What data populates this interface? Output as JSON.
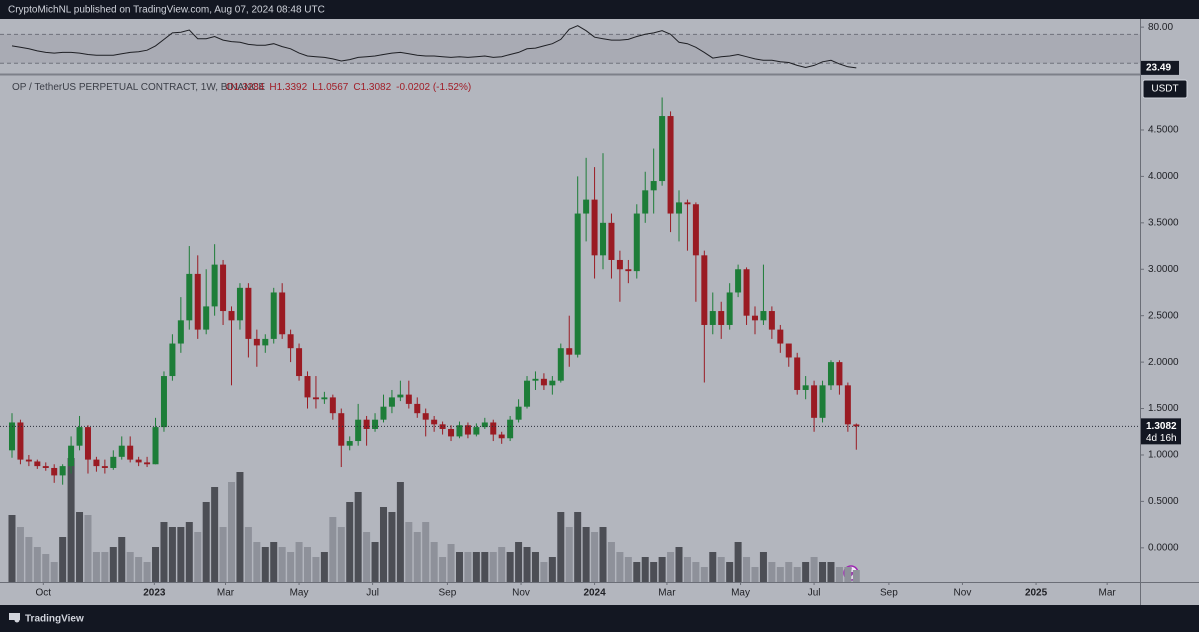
{
  "header": {
    "publisher_line": "CryptoMichNL published on TradingView.com, Aug 07, 2024 08:48 UTC"
  },
  "footer": {
    "brand": "TradingView"
  },
  "chart_data": {
    "type": "candlestick",
    "symbol_line": "OP / TetherUS PERPETUAL CONTRACT, 1W, BINANCE",
    "ohlc_legend": [
      "O1.3284",
      "H1.3392",
      "L1.0567",
      "C1.3082",
      "-0.0202 (-1.52%)"
    ],
    "currency": "USDT",
    "countdown": "4d 16h",
    "up_color": "#1d7d38",
    "down_color": "#9a1b23",
    "xlim": [
      -1.42,
      133.6
    ],
    "xticks": [
      {
        "value": 3.71,
        "label": "Oct"
      },
      {
        "value": 16.86,
        "label": "2023"
      },
      {
        "value": 25.29,
        "label": "Mar"
      },
      {
        "value": 34,
        "label": "May"
      },
      {
        "value": 42.71,
        "label": "Jul"
      },
      {
        "value": 51.57,
        "label": "Sep"
      },
      {
        "value": 60.29,
        "label": "Nov"
      },
      {
        "value": 69,
        "label": "2024"
      },
      {
        "value": 77.57,
        "label": "Mar"
      },
      {
        "value": 86.29,
        "label": "May"
      },
      {
        "value": 95,
        "label": "Jul"
      },
      {
        "value": 103.86,
        "label": "Sep"
      },
      {
        "value": 112.57,
        "label": "Nov"
      },
      {
        "value": 121.29,
        "label": "2025"
      },
      {
        "value": 129.71,
        "label": "Mar"
      }
    ],
    "ylim": [
      -0.368,
      5.092
    ],
    "yticks": [
      {
        "value": 0,
        "label": "0.0000"
      },
      {
        "value": 0.5,
        "label": "0.5000"
      },
      {
        "value": 1,
        "label": "1.0000"
      },
      {
        "value": 1.5,
        "label": "1.5000"
      },
      {
        "value": 2,
        "label": "2.0000"
      },
      {
        "value": 2.5,
        "label": "2.5000"
      },
      {
        "value": 3,
        "label": "3.0000"
      },
      {
        "value": 3.5,
        "label": "3.5000"
      },
      {
        "value": 4,
        "label": "4.0000"
      },
      {
        "value": 4.5,
        "label": "4.5000"
      }
    ],
    "open": [
      1.05,
      1.35,
      0.95,
      0.93,
      0.88,
      0.86,
      0.78,
      0.88,
      1.1,
      1.3,
      0.95,
      0.88,
      0.86,
      0.98,
      1.1,
      0.95,
      0.92,
      0.9,
      1.3,
      1.85,
      2.2,
      2.45,
      2.95,
      2.35,
      2.6,
      3.05,
      2.55,
      2.45,
      2.8,
      2.25,
      2.18,
      2.25,
      2.75,
      2.3,
      2.15,
      1.85,
      1.62,
      1.6,
      1.62,
      1.45,
      1.1,
      1.15,
      1.38,
      1.28,
      1.38,
      1.52,
      1.62,
      1.65,
      1.55,
      1.45,
      1.38,
      1.33,
      1.28,
      1.2,
      1.32,
      1.22,
      1.3,
      1.35,
      1.22,
      1.18,
      1.38,
      1.52,
      1.8,
      1.82,
      1.75,
      1.8,
      2.15,
      2.08,
      3.6,
      3.75,
      3.15,
      3.5,
      3.1,
      3.0,
      2.98,
      3.6,
      3.85,
      3.95,
      4.65,
      3.6,
      3.72,
      3.7,
      3.15,
      2.4,
      2.55,
      2.4,
      2.75,
      3.0,
      2.5,
      2.45,
      2.55,
      2.35,
      2.2,
      2.05,
      1.7,
      1.75,
      1.4,
      1.75,
      2.0,
      1.75,
      1.3284
    ],
    "high": [
      1.45,
      1.38,
      1.0,
      0.95,
      0.92,
      0.9,
      0.9,
      1.2,
      1.42,
      1.32,
      0.98,
      0.95,
      1.05,
      1.2,
      1.2,
      0.98,
      0.98,
      1.4,
      1.9,
      2.3,
      2.7,
      3.25,
      3.15,
      3.0,
      3.27,
      3.1,
      2.6,
      2.85,
      2.85,
      2.35,
      2.3,
      2.8,
      2.85,
      2.35,
      2.2,
      1.9,
      1.85,
      1.68,
      1.65,
      1.5,
      1.2,
      1.55,
      1.42,
      1.45,
      1.65,
      1.7,
      1.8,
      1.8,
      1.62,
      1.5,
      1.42,
      1.36,
      1.32,
      1.36,
      1.35,
      1.34,
      1.4,
      1.38,
      1.25,
      1.42,
      1.6,
      1.85,
      1.9,
      1.88,
      1.85,
      2.2,
      2.5,
      4.0,
      4.2,
      4.1,
      4.25,
      3.6,
      3.2,
      3.1,
      3.7,
      4.05,
      4.3,
      4.85,
      4.7,
      3.85,
      3.75,
      3.72,
      3.2,
      2.75,
      2.65,
      2.85,
      3.05,
      3.02,
      2.6,
      3.05,
      2.6,
      2.4,
      2.2,
      2.1,
      1.85,
      1.8,
      1.8,
      2.02,
      2.02,
      1.78,
      1.3392
    ],
    "low": [
      0.97,
      0.9,
      0.88,
      0.85,
      0.83,
      0.7,
      0.68,
      0.8,
      1.05,
      0.8,
      0.82,
      0.8,
      0.84,
      0.95,
      0.92,
      0.88,
      0.87,
      0.9,
      1.25,
      1.8,
      2.1,
      2.35,
      2.25,
      2.3,
      2.5,
      2.4,
      1.75,
      2.35,
      2.05,
      1.95,
      2.1,
      2.2,
      2.25,
      2.0,
      1.8,
      1.5,
      1.5,
      1.55,
      1.38,
      0.87,
      1.05,
      1.1,
      1.1,
      1.25,
      1.35,
      1.45,
      1.58,
      1.5,
      1.4,
      1.2,
      1.25,
      1.22,
      1.15,
      1.18,
      1.18,
      1.2,
      1.28,
      1.15,
      1.12,
      1.15,
      1.35,
      1.5,
      1.7,
      1.7,
      1.65,
      1.78,
      1.95,
      2.05,
      3.3,
      2.9,
      3.0,
      2.9,
      2.65,
      2.85,
      2.9,
      3.5,
      3.6,
      3.9,
      3.4,
      3.3,
      3.2,
      2.65,
      1.78,
      2.3,
      2.25,
      2.35,
      2.7,
      2.4,
      2.3,
      2.4,
      2.25,
      2.1,
      1.95,
      1.65,
      1.6,
      1.25,
      1.35,
      1.7,
      1.65,
      1.25,
      1.0567
    ],
    "close": [
      1.35,
      0.95,
      0.93,
      0.88,
      0.86,
      0.78,
      0.88,
      1.1,
      1.3,
      0.95,
      0.88,
      0.86,
      0.98,
      1.1,
      0.95,
      0.92,
      0.9,
      1.3,
      1.85,
      2.2,
      2.45,
      2.95,
      2.35,
      2.6,
      3.05,
      2.55,
      2.45,
      2.8,
      2.25,
      2.18,
      2.25,
      2.75,
      2.3,
      2.15,
      1.85,
      1.62,
      1.6,
      1.62,
      1.45,
      1.1,
      1.15,
      1.38,
      1.28,
      1.38,
      1.52,
      1.62,
      1.65,
      1.55,
      1.45,
      1.38,
      1.33,
      1.28,
      1.2,
      1.32,
      1.22,
      1.3,
      1.35,
      1.22,
      1.18,
      1.38,
      1.52,
      1.8,
      1.82,
      1.75,
      1.8,
      2.15,
      2.08,
      3.6,
      3.75,
      3.15,
      3.5,
      3.1,
      3.0,
      2.98,
      3.6,
      3.85,
      3.95,
      4.65,
      3.6,
      3.72,
      3.7,
      3.15,
      2.4,
      2.55,
      2.4,
      2.75,
      3.0,
      2.5,
      2.45,
      2.55,
      2.35,
      2.2,
      2.05,
      1.7,
      1.75,
      1.4,
      1.75,
      2.0,
      1.75,
      1.33,
      1.3082
    ],
    "volume": {
      "up_color": "#4c4e55",
      "down_color": "#8e919a",
      "values": [
        67,
        55,
        45,
        35,
        28,
        20,
        45,
        124,
        70,
        67,
        30,
        30,
        35,
        45,
        30,
        25,
        20,
        35,
        60,
        55,
        55,
        60,
        50,
        80,
        95,
        55,
        100,
        110,
        55,
        40,
        35,
        40,
        35,
        30,
        40,
        35,
        25,
        30,
        65,
        55,
        80,
        90,
        50,
        40,
        75,
        70,
        100,
        60,
        50,
        60,
        40,
        25,
        38,
        30,
        30,
        30,
        30,
        30,
        35,
        30,
        40,
        35,
        30,
        20,
        25,
        70,
        55,
        70,
        55,
        50,
        55,
        40,
        30,
        25,
        20,
        25,
        20,
        25,
        30,
        35,
        25,
        20,
        15,
        30,
        25,
        20,
        40,
        25,
        15,
        30,
        20,
        15,
        20,
        15,
        20,
        25,
        20,
        20,
        15,
        15,
        12
      ]
    },
    "rsi": {
      "color": "#1e1f24",
      "ylim": [
        16.4,
        89.9
      ],
      "band": [
        30,
        70
      ],
      "yticks": [
        {
          "value": 80,
          "label": "80.00"
        }
      ],
      "values": [
        54,
        52,
        50,
        47,
        45,
        44,
        45,
        45,
        44,
        42,
        41,
        41,
        41,
        43,
        45,
        46,
        48,
        54,
        63,
        72,
        73,
        76,
        64,
        64,
        67,
        62,
        60,
        59,
        56,
        55,
        55,
        57,
        53,
        50,
        44,
        40,
        39,
        38,
        36,
        33,
        35,
        38,
        39,
        40,
        42,
        44,
        45,
        43,
        41,
        40,
        40,
        39,
        38,
        39,
        38,
        39,
        40,
        38,
        39,
        42,
        45,
        50,
        51,
        54,
        57,
        63,
        77,
        82,
        75,
        66,
        64,
        62,
        62,
        63,
        67,
        70,
        72,
        75,
        70,
        59,
        57,
        52,
        45,
        37,
        39,
        40,
        42,
        39,
        36,
        34,
        34,
        32,
        31,
        27,
        24,
        27,
        32,
        34,
        29,
        25,
        23.49
      ]
    }
  }
}
